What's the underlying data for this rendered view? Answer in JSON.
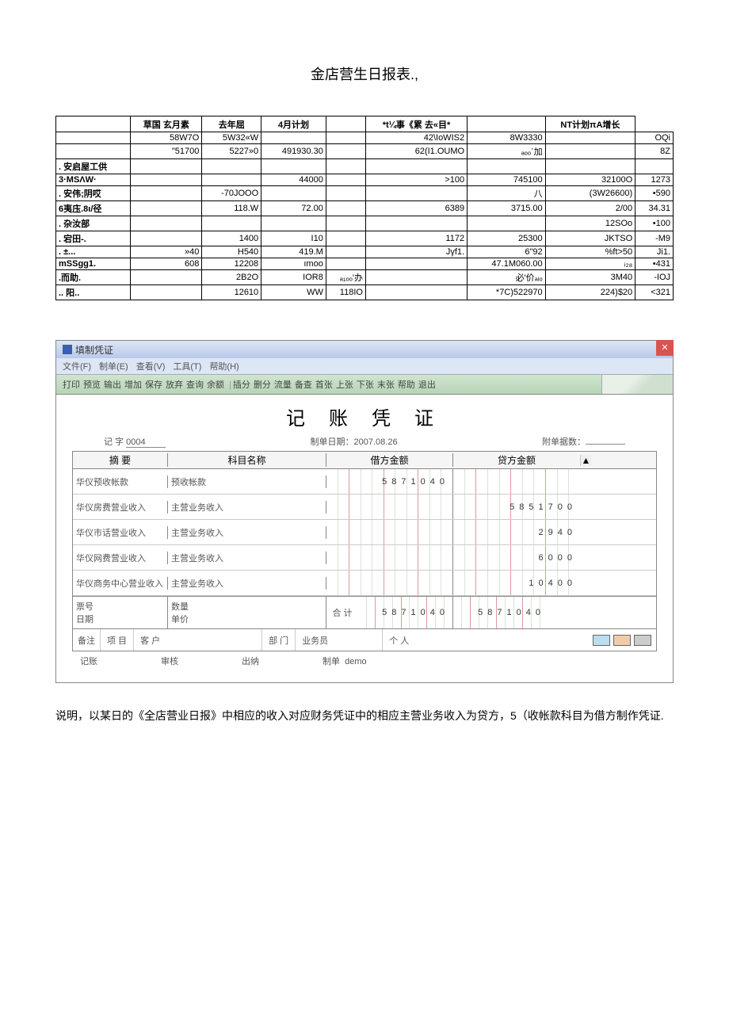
{
  "page_title": "金店营生日报表.,",
  "report": {
    "header_cols": [
      "",
      "草国 玄月素",
      "去年屈",
      "4月计划",
      "",
      "*t¼事《累 去«目*",
      "",
      "NT计划πA增长"
    ],
    "rows": [
      {
        "label": "",
        "c": [
          "58W7O",
          "5W32«W",
          "",
          "",
          "42\\IoWIS2",
          "8W3330",
          "",
          "OQi"
        ]
      },
      {
        "label": "",
        "c": [
          "\"51700",
          "5227»0",
          "491930.30",
          "",
          "62(I1.OUMO",
          "ₐₒₒ᾽加",
          "",
          "8Z"
        ]
      },
      {
        "label": ". 安启屋工供",
        "c": [
          "",
          "",
          "",
          "",
          "",
          "",
          "",
          ""
        ]
      },
      {
        "label": "3·MSΛW·",
        "c": [
          "",
          "",
          "44000",
          "",
          ">100",
          "745100",
          "32100O",
          "1273"
        ]
      },
      {
        "label": ". 安伟;阴哎",
        "c": [
          "",
          "-70JOOO",
          "",
          "",
          "",
          "八",
          "(3W26600)",
          "•590"
        ]
      },
      {
        "label": "6夷庒.8ι/径",
        "c": [
          "",
          "118.W",
          "72.00",
          "",
          "6389",
          "3715.00",
          "2/00",
          "34.31"
        ]
      },
      {
        "label": ". 杂汝部",
        "c": [
          "",
          "",
          "",
          "",
          "",
          "",
          "12SOo",
          "•100"
        ]
      },
      {
        "label": ". 宕田-.",
        "c": [
          "",
          "1400",
          "I10",
          "",
          "1172",
          "25300",
          "JKTSO",
          "-M9"
        ]
      },
      {
        "label": ". ±...",
        "c": [
          "»40",
          "H540",
          "419.M",
          "",
          "Jγf1.",
          "6\"92",
          "%ft>50",
          "Ji1."
        ]
      },
      {
        "label": "mSSgg1.",
        "c": [
          "608",
          "12208",
          "ımoo",
          "",
          "",
          "47.1M060.00",
          "ᵢ₂₈",
          "•431"
        ]
      },
      {
        "label": ".而助.",
        "c": [
          "",
          "2B2O",
          "IOR8",
          "ₐ₁ₒₒ'办",
          "",
          "必'价ₐᵢₒ",
          "3M40",
          "-IOJ"
        ]
      },
      {
        "label": ".. 阳..",
        "c": [
          "",
          "12610",
          "WW",
          "118IO",
          "",
          "*7C)522970",
          "224)$20",
          "<321"
        ]
      }
    ]
  },
  "voucher": {
    "window_title": "填制凭证",
    "menu": [
      "文件(F)",
      "制单(E)",
      "查看(V)",
      "工具(T)",
      "帮助(H)"
    ],
    "toolbar": [
      "打印",
      "预览",
      "输出",
      "增加",
      "保存",
      "放弃",
      "查询",
      "余额",
      "|",
      "插分",
      "删分",
      "流量",
      "备查",
      "首张",
      "上张",
      "下张",
      "末张",
      "帮助",
      "退出"
    ],
    "heading": "记 账 凭 证",
    "voucher_no_label": "记   字",
    "voucher_no": "0004",
    "date_label": "制单日期：",
    "date": "2007.08.26",
    "attach_label": "附单据数：",
    "grid_headers": {
      "summary": "摘 要",
      "subject": "科目名称",
      "debit": "借方金额",
      "credit": "贷方金额"
    },
    "rows": [
      {
        "summary": "华仪预收帐款",
        "subject": "预收帐款",
        "debit": "5871040",
        "credit": ""
      },
      {
        "summary": "华仪房费营业收入",
        "subject": "主营业务收入",
        "debit": "",
        "credit": "5851700"
      },
      {
        "summary": "华仪市话营业收入",
        "subject": "主营业务收入",
        "debit": "",
        "credit": "2940"
      },
      {
        "summary": "华仪网费营业收入",
        "subject": "主营业务收入",
        "debit": "",
        "credit": "6000"
      },
      {
        "summary": "华仪商务中心营业收入",
        "subject": "主营业务收入",
        "debit": "",
        "credit": "10400"
      }
    ],
    "footer": {
      "ticket_label": "票号",
      "date_label": "日期",
      "qty_label": "数量",
      "price_label": "单价",
      "total_label": "合 计",
      "total_debit": "5871040",
      "total_credit": "5871040"
    },
    "remark": {
      "label": "备注",
      "proj": "项 目",
      "cust": "客 户",
      "dept": "部 门",
      "sales": "业务员",
      "person": "个 人"
    },
    "signoff": {
      "book": "记账",
      "audit": "审核",
      "cashier": "出纳",
      "maker": "制单",
      "maker_name": "demo"
    }
  },
  "explanation": "说明，以某日的《全店营业日报》中相应的收入对应财务凭证中的相应主营业务收入为贷方，5（收帐款科目为借方制作凭证."
}
